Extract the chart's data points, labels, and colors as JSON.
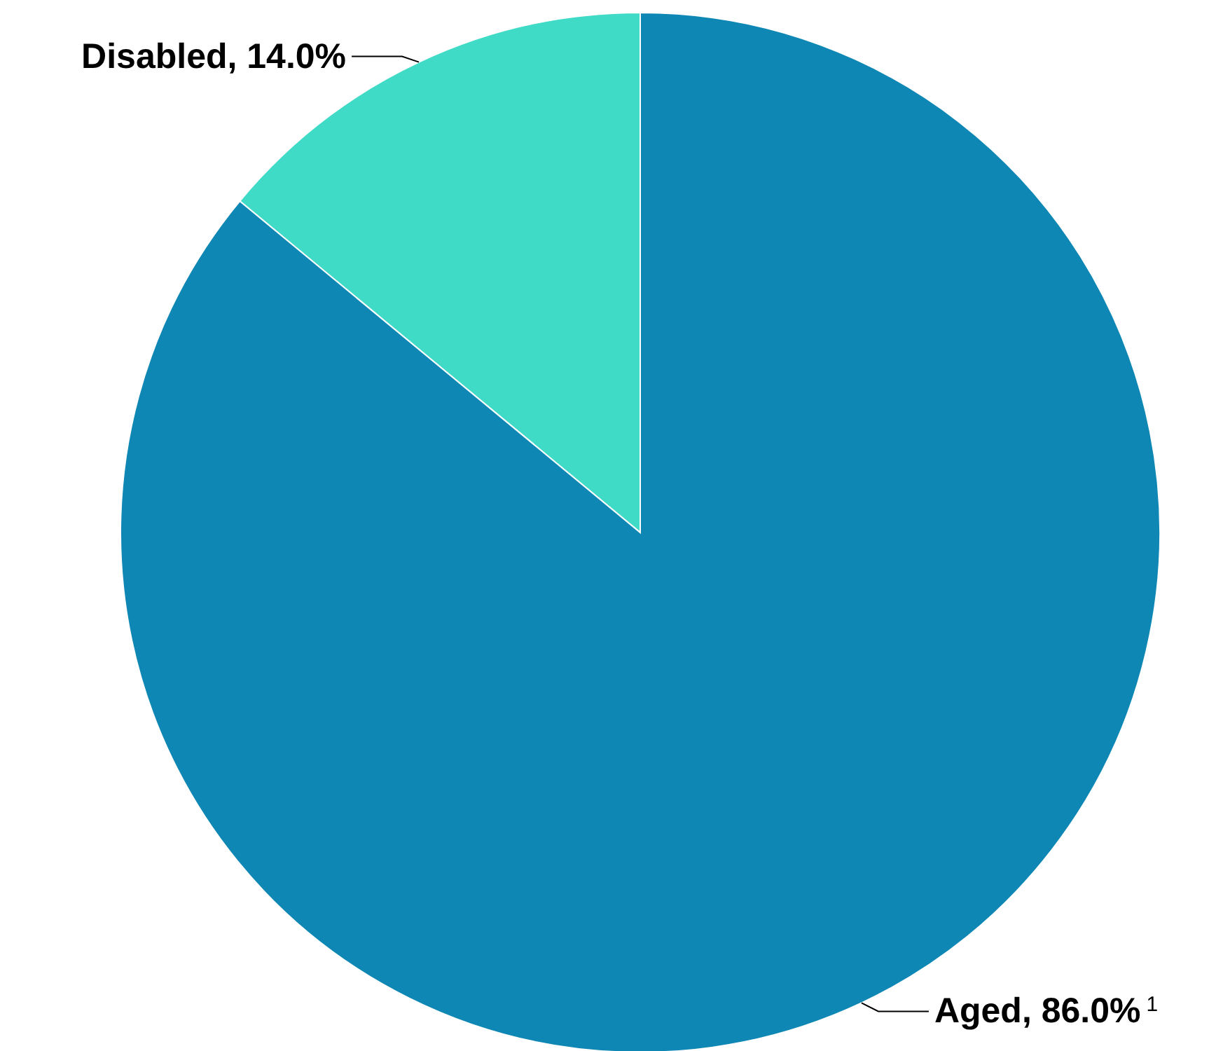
{
  "chart_data": {
    "type": "pie",
    "categories": [
      "Disabled",
      "Aged"
    ],
    "values": [
      14.0,
      86.0
    ],
    "colors": [
      "#40dbc6",
      "#0e87b5"
    ],
    "value_labels": [
      "14.0%",
      "86.0%$^{1}$"
    ]
  }
}
